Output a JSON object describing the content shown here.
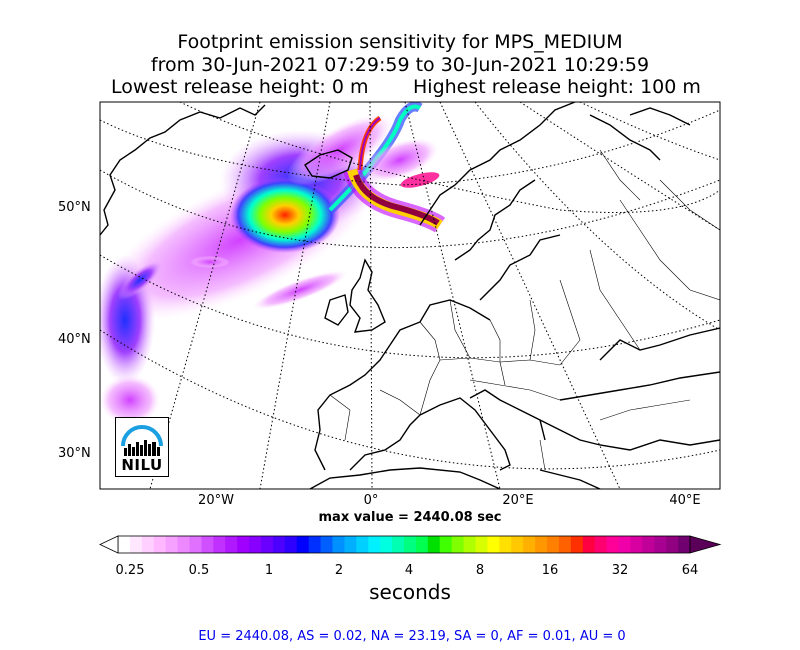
{
  "title": {
    "line1": "Footprint emission sensitivity for MPS_MEDIUM",
    "line2": "from 30-Jun-2021 07:29:59 to 30-Jun-2021 10:29:59",
    "line3_left": "Lowest release height: 0 m",
    "line3_right": "Highest release height: 100 m"
  },
  "map": {
    "lat_labels": [
      "50°N",
      "40°N",
      "30°N"
    ],
    "lon_labels": [
      "20°W",
      "0°",
      "20°E",
      "40°E"
    ],
    "max_value_text": "max value = 2440.08 sec",
    "logo_text": "NILU"
  },
  "colorbar": {
    "tick_labels": [
      "0.25",
      "0.5",
      "1",
      "2",
      "4",
      "8",
      "16",
      "32",
      "64"
    ],
    "units": "seconds",
    "colors": [
      "#ffffff",
      "#ffe8ff",
      "#ffd0ff",
      "#ffb8ff",
      "#f6a0ff",
      "#ee88ff",
      "#e070ff",
      "#d050ff",
      "#c030ff",
      "#b018ff",
      "#a000ff",
      "#8800ff",
      "#6a00ff",
      "#4c00ff",
      "#2e00ff",
      "#0000ff",
      "#0030ff",
      "#0060ff",
      "#0090ff",
      "#00b0ff",
      "#00d0ff",
      "#00f0ff",
      "#00ffe0",
      "#00ffb0",
      "#00ff80",
      "#00ff50",
      "#00e000",
      "#40ff00",
      "#80ff00",
      "#b0ff00",
      "#d8ff00",
      "#ffff00",
      "#ffe000",
      "#ffc800",
      "#ffb000",
      "#ff9800",
      "#ff8000",
      "#ff6000",
      "#ff3000",
      "#ff0040",
      "#ff0070",
      "#ff0098",
      "#f000a8",
      "#d800a0",
      "#c00098",
      "#a80090",
      "#900080",
      "#700070"
    ]
  },
  "footer": "EU = 2440.08,  AS = 0.02,  NA = 23.19,  SA = 0,  AF = 0.01,  AU = 0"
}
